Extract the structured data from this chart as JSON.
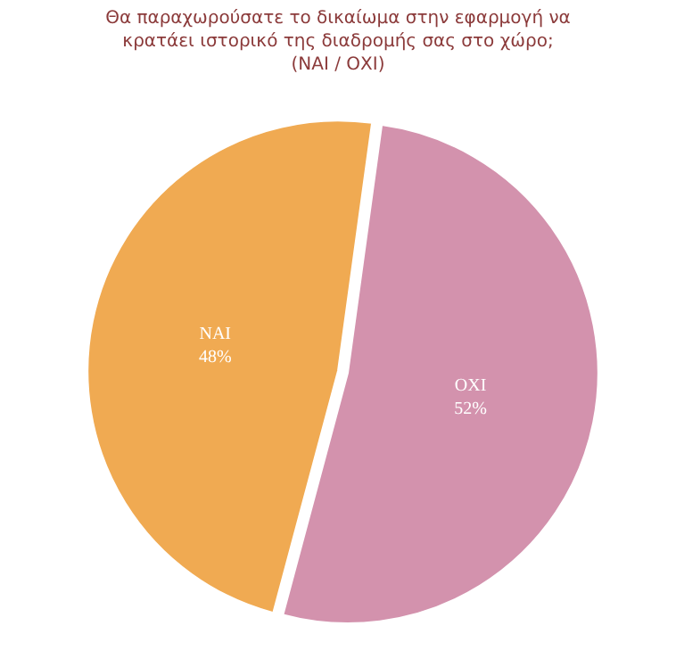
{
  "chart_data": {
    "type": "pie",
    "title": "Θα παραχωρούσατε το δικαίωμα στην εφαρμογή να\nκρατάει ιστορικό της διαδρομής σας στο χώρο;\n(ΝΑΙ / ΟΧΙ)",
    "categories": [
      "ΝΑΙ",
      "ΟΧΙ"
    ],
    "values": [
      48,
      52
    ],
    "colors": [
      "#f0aa52",
      "#d392ad"
    ],
    "value_labels": [
      "48%",
      "52%"
    ],
    "legend": false
  }
}
